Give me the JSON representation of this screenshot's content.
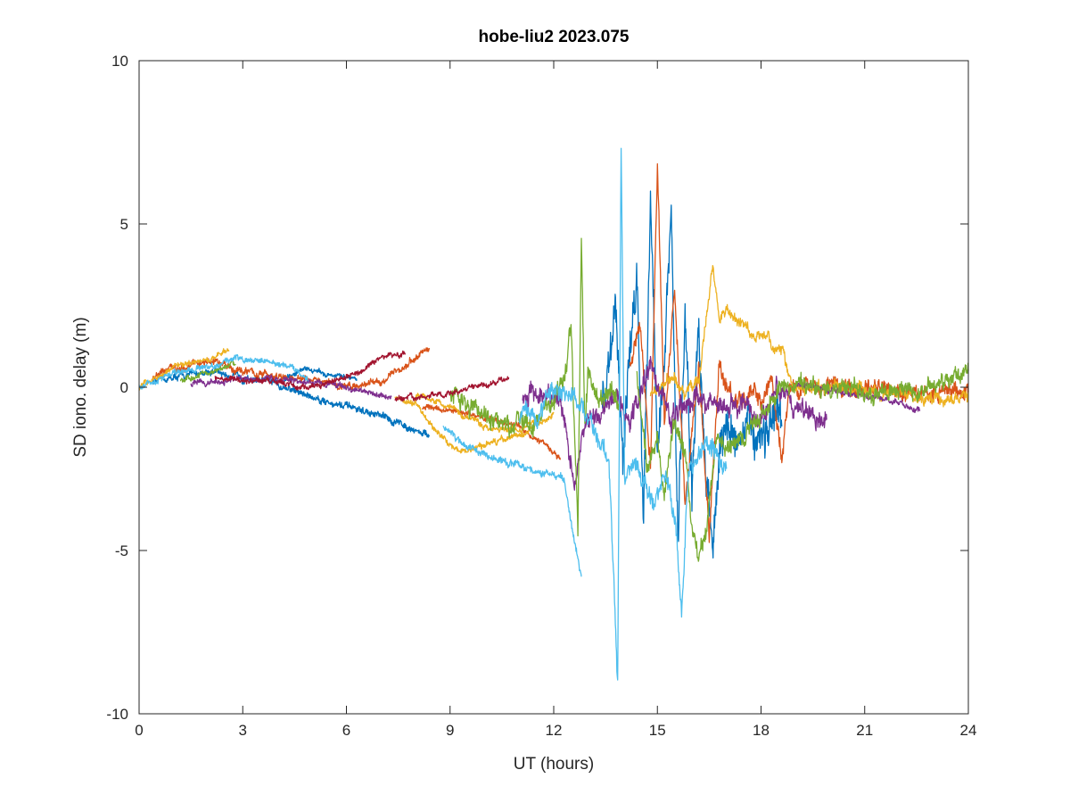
{
  "chart_data": {
    "type": "line",
    "title": "hobe-liu2 2023.075",
    "xlabel": "UT (hours)",
    "ylabel": "SD iono. delay (m)",
    "xlim": [
      0,
      24
    ],
    "ylim": [
      -10,
      10
    ],
    "xticks": [
      "0",
      "3",
      "6",
      "9",
      "12",
      "15",
      "18",
      "21",
      "24"
    ],
    "yticks": [
      "-10",
      "-5",
      "0",
      "5",
      "10"
    ],
    "grid": false,
    "legend": "none",
    "series": [
      {
        "color": "#0072bd",
        "segments": [
          {
            "t": [
              0.4,
              1,
              2,
              3,
              4,
              5,
              6,
              7,
              7.8,
              8.4
            ],
            "v": [
              0.2,
              0.3,
              0.5,
              0.3,
              0.1,
              -0.3,
              -0.6,
              -0.9,
              -1.2,
              -1.5
            ],
            "noise": 0.15
          },
          {
            "t": [
              4.2,
              4.8,
              5.4,
              6.0,
              6.3
            ],
            "v": [
              0.2,
              0.6,
              0.4,
              0.3,
              0.2
            ],
            "noise": 0.1
          },
          {
            "t": [
              13.4,
              13.8,
              14.0,
              14.2,
              14.4,
              14.6,
              14.8,
              15.0,
              15.2,
              15.4,
              15.6,
              15.8,
              16.0,
              16.2,
              16.4,
              16.6,
              16.8,
              17.0,
              17.5,
              18.0,
              18.6
            ],
            "v": [
              -0.5,
              2.5,
              -2.0,
              1.0,
              3.5,
              -3.5,
              5.8,
              -1.5,
              0.5,
              5.2,
              -4.8,
              2.5,
              -3.5,
              1.8,
              -2.5,
              -4.8,
              -2.0,
              -1.3,
              -1.5,
              -1.3,
              -1.2
            ],
            "noise": 0.9
          }
        ]
      },
      {
        "color": "#d95319",
        "segments": [
          {
            "t": [
              0.4,
              1,
              2,
              3,
              4,
              5,
              6,
              7,
              7.5,
              8.0,
              8.4
            ],
            "v": [
              0.3,
              0.6,
              0.8,
              0.5,
              0.3,
              0.2,
              0.0,
              0.2,
              0.5,
              0.9,
              1.2
            ],
            "noise": 0.15
          },
          {
            "t": [
              8.2,
              9.5,
              11,
              11.8,
              12.2
            ],
            "v": [
              -0.6,
              -0.8,
              -1.2,
              -1.8,
              -2.2
            ],
            "noise": 0.12
          },
          {
            "t": [
              14.2,
              14.5,
              14.8,
              15.0,
              15.2,
              15.5,
              15.8,
              16.2,
              16.5,
              16.8,
              17.2,
              17.6,
              18.0,
              18.3,
              18.6,
              18.8,
              19.4,
              20.2,
              21.0,
              22.0,
              23.0,
              24.0
            ],
            "v": [
              0.5,
              2.0,
              -2.5,
              6.8,
              -1.0,
              3.0,
              -3.5,
              0.5,
              -4.5,
              0.8,
              -0.5,
              -0.2,
              -0.5,
              0.3,
              -2.2,
              -0.1,
              0.1,
              0.0,
              0.0,
              -0.1,
              -0.2,
              -0.1
            ],
            "noise": 0.35
          }
        ]
      },
      {
        "color": "#edb120",
        "segments": [
          {
            "t": [
              0,
              0.5,
              1,
              1.5,
              2,
              2.6
            ],
            "v": [
              0.0,
              0.3,
              0.6,
              0.8,
              0.9,
              1.1
            ],
            "noise": 0.12
          },
          {
            "t": [
              7.4,
              8.0,
              8.5,
              9.0,
              9.5,
              10.0,
              10.5,
              11.0,
              11.5,
              12.0
            ],
            "v": [
              -0.3,
              -0.5,
              -1.2,
              -1.8,
              -2.0,
              -1.8,
              -1.6,
              -1.5,
              -1.2,
              -0.8
            ],
            "noise": 0.12
          },
          {
            "t": [
              8.0,
              9,
              10,
              11,
              11.6
            ],
            "v": [
              -0.2,
              -0.6,
              -1.2,
              -1.3,
              -1.0
            ],
            "noise": 0.12
          },
          {
            "t": [
              14.8,
              15.5,
              15.8,
              16.0,
              16.2,
              16.4,
              16.6,
              16.8,
              17.0,
              17.4,
              17.8,
              18.2,
              18.6,
              19.0,
              20.0,
              21.0,
              22.0,
              23.0,
              24.0
            ],
            "v": [
              -0.2,
              0.3,
              -0.3,
              0.0,
              0.3,
              2.0,
              3.7,
              2.0,
              2.3,
              2.0,
              1.6,
              1.4,
              1.0,
              0.0,
              0.0,
              -0.1,
              -0.2,
              -0.4,
              -0.2
            ],
            "noise": 0.25
          }
        ]
      },
      {
        "color": "#7e2f8e",
        "segments": [
          {
            "t": [
              1.5,
              2.5,
              3.5,
              4.5,
              5.5,
              6.5,
              7.3
            ],
            "v": [
              0.1,
              0.2,
              0.3,
              0.2,
              0.1,
              -0.1,
              -0.3
            ],
            "noise": 0.12
          },
          {
            "t": [
              11.1,
              11.6,
              12.2,
              12.6,
              12.9,
              13.3,
              13.8,
              14.2,
              14.8,
              15.4,
              16.0,
              16.6,
              17.0,
              17.5,
              18.0,
              18.5,
              19.0,
              19.5,
              19.9
            ],
            "v": [
              -0.3,
              -0.2,
              -0.5,
              -3.0,
              -1.0,
              -0.8,
              -0.3,
              -1.0,
              0.8,
              -1.2,
              -0.3,
              -0.5,
              -0.5,
              -0.5,
              -1.0,
              0.0,
              -0.6,
              -0.8,
              -1.0
            ],
            "noise": 0.4
          },
          {
            "t": [
              19.0,
              19.8,
              20.5,
              21.2,
              22.0,
              22.6
            ],
            "v": [
              0.1,
              0.0,
              -0.2,
              -0.3,
              -0.5,
              -0.7
            ],
            "noise": 0.12
          }
        ]
      },
      {
        "color": "#77ac30",
        "segments": [
          {
            "t": [
              1.2,
              1.8,
              2.4,
              2.8
            ],
            "v": [
              0.2,
              0.4,
              0.6,
              0.7
            ],
            "noise": 0.12
          },
          {
            "t": [
              9.0,
              9.5,
              10.0,
              10.5,
              11.0,
              11.5,
              12.0,
              12.3,
              12.5,
              12.7,
              12.8,
              12.9,
              13.0,
              13.3,
              13.6,
              13.9
            ],
            "v": [
              -0.3,
              -0.6,
              -0.9,
              -1.1,
              -1.2,
              -1.0,
              -0.5,
              0.3,
              2.0,
              -4.4,
              4.5,
              -1.0,
              0.7,
              -0.5,
              -0.2,
              -0.5
            ],
            "noise": 0.4
          },
          {
            "t": [
              14.4,
              14.7,
              15.0,
              15.2,
              15.5,
              15.8,
              16.0,
              16.2,
              16.4,
              16.7,
              17.0,
              17.5,
              18.0,
              18.6,
              19.0,
              20.0,
              21.0,
              22.0,
              23.0,
              24.0
            ],
            "v": [
              0.5,
              -2.5,
              -1.5,
              -3.5,
              -1.0,
              -2.0,
              -4.2,
              -5.0,
              -4.5,
              -1.5,
              -1.8,
              -1.5,
              -0.8,
              -0.1,
              0.0,
              0.0,
              -0.1,
              -0.1,
              0.0,
              0.5
            ],
            "noise": 0.35
          }
        ]
      },
      {
        "color": "#4dbeee",
        "segments": [
          {
            "t": [
              0,
              0.5,
              1.2,
              2.0,
              2.8,
              3.6,
              4.4,
              4.9
            ],
            "v": [
              0.0,
              0.2,
              0.5,
              0.6,
              0.9,
              0.8,
              0.6,
              0.2
            ],
            "noise": 0.12
          },
          {
            "t": [
              8.8,
              9.3,
              9.8,
              10.3,
              10.8,
              11.3,
              11.8,
              12.3,
              12.6,
              12.8
            ],
            "v": [
              -1.2,
              -1.7,
              -2.0,
              -2.2,
              -2.3,
              -2.5,
              -2.6,
              -2.8,
              -4.8,
              -5.8
            ],
            "noise": 0.15
          },
          {
            "t": [
              11.0,
              11.5,
              12.0,
              12.6,
              13.0,
              13.3,
              13.6,
              13.75,
              13.85,
              13.95,
              14.05,
              14.3,
              14.6,
              14.9,
              15.2,
              15.5,
              15.7,
              15.9,
              16.2,
              16.6,
              17.0
            ],
            "v": [
              -0.8,
              -0.9,
              0.0,
              -0.3,
              -1.0,
              -1.6,
              -2.2,
              -6.0,
              -9.1,
              7.3,
              -3.0,
              -2.3,
              -3.0,
              -3.5,
              -2.5,
              -4.0,
              -7.0,
              -2.5,
              -2.0,
              -1.8,
              -2.5
            ],
            "noise": 0.4
          }
        ]
      },
      {
        "color": "#a2142f",
        "segments": [
          {
            "t": [
              2.2,
              3.0,
              3.8,
              4.6,
              5.4,
              6.2,
              6.8,
              7.2,
              7.7
            ],
            "v": [
              0.3,
              0.2,
              0.2,
              0.0,
              0.1,
              0.4,
              0.8,
              1.0,
              1.0
            ],
            "noise": 0.12
          },
          {
            "t": [
              7.4,
              8.2,
              9.0,
              9.6,
              10.2,
              10.7
            ],
            "v": [
              -0.4,
              -0.3,
              -0.2,
              0.0,
              0.1,
              0.3
            ],
            "noise": 0.12
          }
        ]
      }
    ]
  }
}
